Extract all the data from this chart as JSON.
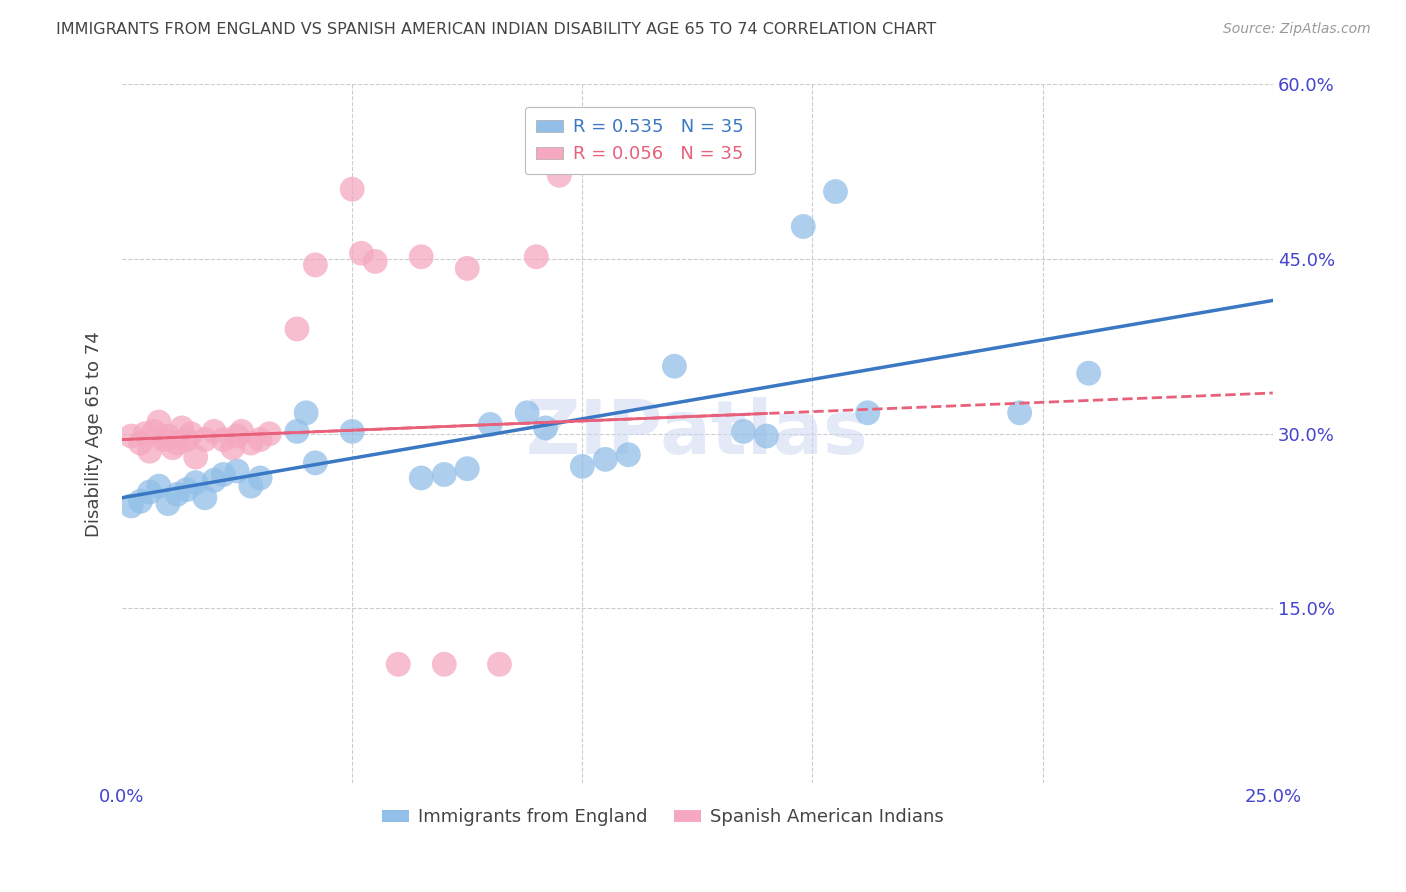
{
  "title": "IMMIGRANTS FROM ENGLAND VS SPANISH AMERICAN INDIAN DISABILITY AGE 65 TO 74 CORRELATION CHART",
  "source_text": "Source: ZipAtlas.com",
  "ylabel": "Disability Age 65 to 74",
  "blue_color": "#92bfe8",
  "pink_color": "#f5a8bf",
  "blue_line_color": "#3b78c4",
  "pink_line_color": "#e8607a",
  "axis_label_color": "#4444cc",
  "title_color": "#444444",
  "grid_color": "#cccccc",
  "watermark_text": "ZIPatlas",
  "watermark_color": "#ccd8f0",
  "xmin": 0.0,
  "xmax": 0.25,
  "ymin": 0.0,
  "ymax": 0.6,
  "ytick_vals": [
    0.15,
    0.3,
    0.45,
    0.6
  ],
  "ytick_labels": [
    "15.0%",
    "30.0%",
    "45.0%",
    "60.0%"
  ],
  "xtick_vals": [
    0.0,
    0.05,
    0.1,
    0.15,
    0.2,
    0.25
  ],
  "xtick_labels": [
    "0.0%",
    "",
    "",
    "",
    "",
    "25.0%"
  ],
  "blue_x": [
    0.002,
    0.004,
    0.006,
    0.008,
    0.01,
    0.012,
    0.014,
    0.016,
    0.018,
    0.02,
    0.022,
    0.025,
    0.028,
    0.03,
    0.038,
    0.04,
    0.042,
    0.05,
    0.065,
    0.07,
    0.075,
    0.08,
    0.088,
    0.092,
    0.1,
    0.105,
    0.11,
    0.12,
    0.135,
    0.14,
    0.148,
    0.155,
    0.162,
    0.195,
    0.21
  ],
  "blue_y": [
    0.238,
    0.242,
    0.25,
    0.255,
    0.24,
    0.248,
    0.252,
    0.258,
    0.245,
    0.26,
    0.265,
    0.268,
    0.255,
    0.262,
    0.302,
    0.318,
    0.275,
    0.302,
    0.262,
    0.265,
    0.27,
    0.308,
    0.318,
    0.305,
    0.272,
    0.278,
    0.282,
    0.358,
    0.302,
    0.298,
    0.478,
    0.508,
    0.318,
    0.318,
    0.352
  ],
  "pink_x": [
    0.002,
    0.004,
    0.005,
    0.006,
    0.007,
    0.008,
    0.009,
    0.01,
    0.011,
    0.012,
    0.013,
    0.014,
    0.015,
    0.016,
    0.018,
    0.02,
    0.022,
    0.024,
    0.025,
    0.026,
    0.028,
    0.03,
    0.032,
    0.038,
    0.042,
    0.05,
    0.052,
    0.055,
    0.06,
    0.065,
    0.07,
    0.075,
    0.082,
    0.09,
    0.095
  ],
  "pink_y": [
    0.298,
    0.292,
    0.3,
    0.285,
    0.302,
    0.31,
    0.295,
    0.298,
    0.288,
    0.292,
    0.305,
    0.295,
    0.3,
    0.28,
    0.295,
    0.302,
    0.295,
    0.288,
    0.298,
    0.302,
    0.292,
    0.295,
    0.3,
    0.39,
    0.445,
    0.51,
    0.455,
    0.448,
    0.102,
    0.452,
    0.102,
    0.442,
    0.102,
    0.452,
    0.522
  ],
  "blue_legend_label": "R = 0.535   N = 35",
  "pink_legend_label": "R = 0.056   N = 35",
  "blue_bottom_label": "Immigrants from England",
  "pink_bottom_label": "Spanish American Indians"
}
